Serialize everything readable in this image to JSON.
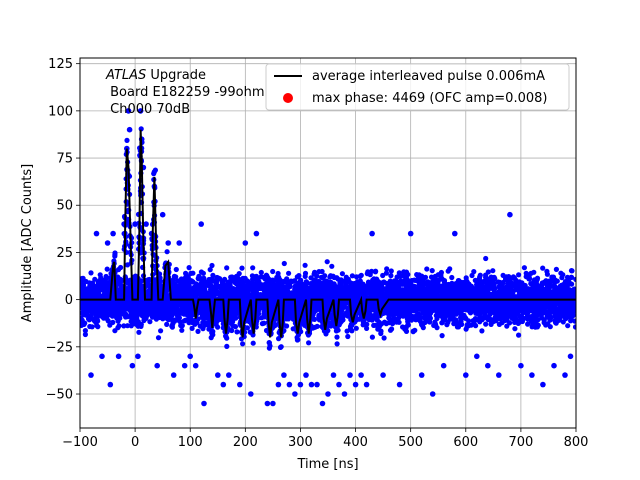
{
  "chart_data": {
    "type": "scatter",
    "xlabel": "Time [ns]",
    "ylabel": "Amplitude [ADC Counts]",
    "xlim": [
      -100,
      800
    ],
    "ylim": [
      -68,
      128
    ],
    "xticks": [
      -100,
      0,
      100,
      200,
      300,
      400,
      500,
      600,
      700,
      800
    ],
    "yticks": [
      -50,
      -25,
      0,
      25,
      50,
      75,
      100,
      125
    ],
    "xtick_labels": [
      "−100",
      "0",
      "100",
      "200",
      "300",
      "400",
      "500",
      "600",
      "700",
      "800"
    ],
    "ytick_labels": [
      "−50",
      "−25",
      "0",
      "25",
      "50",
      "75",
      "100",
      "125"
    ],
    "grid": true,
    "legend_position": "upper-right",
    "annotation": {
      "italic": "ATLAS",
      "line1_rest": " Upgrade",
      "line2": " Board E182259 -99ohm",
      "line3": " Ch000 70dB"
    },
    "series": [
      {
        "name": "average interleaved pulse 0.006mA",
        "kind": "line",
        "color": "#000000",
        "x": [
          -100,
          -45,
          -40,
          -38,
          -35,
          -30,
          -20,
          -18,
          -15,
          -12,
          -8,
          -5,
          0,
          5,
          8,
          10,
          12,
          15,
          18,
          25,
          30,
          32,
          35,
          38,
          42,
          50,
          55,
          60,
          65,
          70,
          105,
          108,
          110,
          112,
          115,
          135,
          138,
          140,
          142,
          145,
          160,
          162,
          165,
          168,
          170,
          185,
          190,
          192,
          195,
          198,
          210,
          212,
          215,
          218,
          220,
          235,
          240,
          242,
          245,
          248,
          260,
          262,
          265,
          268,
          270,
          285,
          290,
          292,
          295,
          298,
          310,
          312,
          315,
          318,
          320,
          335,
          340,
          342,
          345,
          348,
          360,
          362,
          365,
          368,
          370,
          385,
          390,
          392,
          395,
          398,
          410,
          412,
          415,
          418,
          420,
          435,
          440,
          442,
          445,
          448,
          460,
          465,
          470,
          500,
          550,
          600,
          650,
          700,
          750,
          800
        ],
        "y": [
          0,
          0,
          18,
          20,
          0,
          0,
          0,
          40,
          80,
          70,
          30,
          0,
          0,
          0,
          40,
          90,
          75,
          30,
          0,
          0,
          0,
          35,
          65,
          30,
          0,
          0,
          18,
          20,
          0,
          0,
          0,
          -5,
          -10,
          -5,
          0,
          0,
          -8,
          -15,
          -8,
          0,
          0,
          -10,
          -18,
          -10,
          0,
          0,
          0,
          -12,
          -20,
          -12,
          0,
          -10,
          -18,
          -10,
          0,
          0,
          0,
          -12,
          -20,
          -12,
          0,
          -12,
          -20,
          -12,
          0,
          0,
          0,
          -12,
          -18,
          -12,
          0,
          -10,
          -18,
          -10,
          0,
          0,
          0,
          -10,
          -16,
          -10,
          0,
          -8,
          -14,
          -8,
          0,
          0,
          0,
          -8,
          -12,
          -8,
          0,
          -6,
          -10,
          -6,
          0,
          0,
          0,
          -5,
          -8,
          -5,
          0,
          0,
          0,
          0,
          0,
          0,
          0,
          0,
          0,
          0
        ]
      },
      {
        "name": "max phase: 4469 (OFC amp=0.008)",
        "kind": "scatter",
        "color": "#ff0000",
        "x": [],
        "y": []
      },
      {
        "name": "",
        "kind": "scatter",
        "color": "#0000ff",
        "note_points": "dense noise band approx -25 to 25 ADC counts across full time range, with peaks near 0 ns",
        "x": [
          -80,
          -70,
          -60,
          -50,
          -45,
          -40,
          -30,
          -20,
          -15,
          -12,
          -10,
          -5,
          0,
          5,
          10,
          12,
          15,
          20,
          30,
          35,
          40,
          50,
          60,
          70,
          80,
          90,
          100,
          110,
          120,
          125,
          150,
          160,
          170,
          190,
          200,
          210,
          220,
          240,
          250,
          260,
          270,
          280,
          290,
          300,
          310,
          320,
          330,
          340,
          350,
          360,
          370,
          380,
          390,
          400,
          410,
          420,
          430,
          450,
          480,
          500,
          520,
          540,
          560,
          580,
          600,
          620,
          640,
          660,
          680,
          700,
          720,
          740,
          760,
          780,
          790
        ],
        "y": [
          -40,
          35,
          -30,
          30,
          -45,
          35,
          -30,
          40,
          80,
          100,
          90,
          -35,
          40,
          -30,
          100,
          85,
          70,
          40,
          35,
          60,
          -35,
          45,
          30,
          -40,
          30,
          -35,
          -30,
          -35,
          40,
          -55,
          -40,
          -45,
          -40,
          -45,
          30,
          -50,
          35,
          -55,
          -55,
          -45,
          -40,
          -45,
          -50,
          -45,
          -40,
          -45,
          -45,
          -55,
          -50,
          -40,
          -45,
          -50,
          -40,
          -45,
          -40,
          -45,
          35,
          -40,
          -45,
          35,
          -40,
          -50,
          -35,
          35,
          -40,
          -30,
          -35,
          -40,
          45,
          -35,
          -40,
          -45,
          -35,
          -40,
          -30
        ]
      }
    ]
  }
}
